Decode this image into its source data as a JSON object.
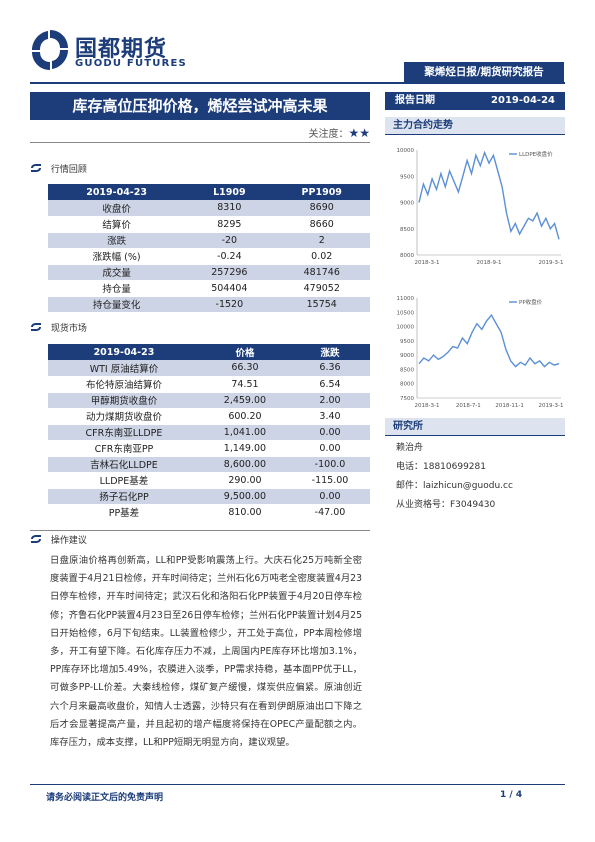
{
  "header": {
    "logo_text": "国都期货",
    "logo_sub": "GUODU FUTURES",
    "report_type": "聚烯烃日报/期货研究报告"
  },
  "title": "库存高位压抑价格，烯烃尝试冲高未果",
  "attention_label": "关注度：",
  "attention_stars": "★★",
  "report_date_label": "报告日期",
  "report_date": "2019-04-24",
  "section1_label": "行情回顾",
  "table1": {
    "headers": [
      "2019-04-23",
      "L1909",
      "PP1909"
    ],
    "rows": [
      [
        "收盘价",
        "8310",
        "8690"
      ],
      [
        "结算价",
        "8295",
        "8660"
      ],
      [
        "涨跌",
        "-20",
        "2"
      ],
      [
        "涨跌幅 (%)",
        "-0.24",
        "0.02"
      ],
      [
        "成交量",
        "257296",
        "481746"
      ],
      [
        "持仓量",
        "504404",
        "479052"
      ],
      [
        "持仓量变化",
        "-1520",
        "15754"
      ]
    ]
  },
  "section2_label": "现货市场",
  "table2": {
    "headers": [
      "2019-04-23",
      "价格",
      "涨跌"
    ],
    "rows": [
      [
        "WTI 原油结算价",
        "66.30",
        "6.36"
      ],
      [
        "布伦特原油结算价",
        "74.51",
        "6.54"
      ],
      [
        "甲醇期货收盘价",
        "2,459.00",
        "2.00"
      ],
      [
        "动力煤期货收盘价",
        "600.20",
        "3.40"
      ],
      [
        "CFR东南亚LLDPE",
        "1,041.00",
        "0.00"
      ],
      [
        "CFR东南亚PP",
        "1,149.00",
        "0.00"
      ],
      [
        "吉林石化LLDPE",
        "8,600.00",
        "-100.0"
      ],
      [
        "LLDPE基差",
        "290.00",
        "-115.00"
      ],
      [
        "扬子石化PP",
        "9,500.00",
        "0.00"
      ],
      [
        "PP基差",
        "810.00",
        "-47.00"
      ]
    ]
  },
  "section3_label": "操作建议",
  "advice_text": "日盘原油价格再创新高，LL和PP受影响震荡上行。大庆石化25万吨新全密度装置于4月21日检修，开车时间待定；兰州石化6万吨老全密度装置4月23日停车检修，开车时间待定；武汉石化和洛阳石化PP装置于4月20日停车检修；齐鲁石化PP装置4月23日至26日停车检修；兰州石化PP装置计划4月25日开始检修，6月下旬结束。LL装置检修少，开工处于高位，PP本周检修增多，开工有望下降。石化库存压力不减，上周国内PE库存环比增加3.1%，PP库存环比增加5.49%，农膜进入淡季，PP需求持稳，基本面PP优于LL，可做多PP-LL价差。大秦线检修，煤矿复产缓慢，煤炭供应偏紧。原油创近六个月来最高收盘价，知情人士透露，沙特只有在看到伊朗原油出口下降之后才会显著提高产量，并且起初的增产幅度将保持在OPEC产量配额之内。库存压力，成本支撑，LL和PP短期无明显方向，建议观望。",
  "right": {
    "chart_section": "主力合约走势",
    "research_section": "研究所",
    "analyst": "赖治舟",
    "phone": "电话：18810699281",
    "email": "邮件：laizhicun@guodu.cc",
    "license": "从业资格号：F3049430"
  },
  "footer": {
    "disclaimer": "请务必阅读正文后的免责声明",
    "page": "1 / 4"
  },
  "colors": {
    "brand": "#1c3d7a",
    "line": "#5b8fd6",
    "shade": "#cdd4e6"
  },
  "chart_data": [
    {
      "type": "line",
      "series": [
        {
          "name": "LLDPE收盘价",
          "values": [
            9000,
            9350,
            9150,
            9450,
            9250,
            9550,
            9300,
            9600,
            9400,
            9200,
            9500,
            9800,
            9550,
            9900,
            9700,
            9950,
            9750,
            9900,
            9600,
            9300,
            8800,
            8450,
            8600,
            8400,
            8550,
            8700,
            8650,
            8800,
            8550,
            8700,
            8500,
            8600,
            8300
          ]
        }
      ],
      "x_ticks": [
        "2018-3-1",
        "2018-9-1",
        "2019-3-1"
      ],
      "y_ticks": [
        "8000",
        "8500",
        "9000",
        "9500",
        "10000"
      ],
      "ylim": [
        8000,
        10000
      ],
      "legend": "top-right",
      "grid": false
    },
    {
      "type": "line",
      "series": [
        {
          "name": "PP收盘价",
          "values": [
            8700,
            8900,
            8800,
            9000,
            8850,
            8950,
            9100,
            9300,
            9250,
            9600,
            9400,
            9800,
            10100,
            9900,
            10200,
            10400,
            10100,
            9800,
            9200,
            8800,
            8600,
            8750,
            8650,
            8900,
            8700,
            8800,
            8600,
            8750,
            8650,
            8700
          ]
        }
      ],
      "x_ticks": [
        "2018-3-1",
        "2018-7-1",
        "2018-11-1",
        "2019-3-1"
      ],
      "y_ticks": [
        "7500",
        "8000",
        "8500",
        "9000",
        "9500",
        "10000",
        "10500",
        "11000"
      ],
      "ylim": [
        7500,
        11000
      ],
      "legend": "top-right",
      "grid": false
    }
  ]
}
